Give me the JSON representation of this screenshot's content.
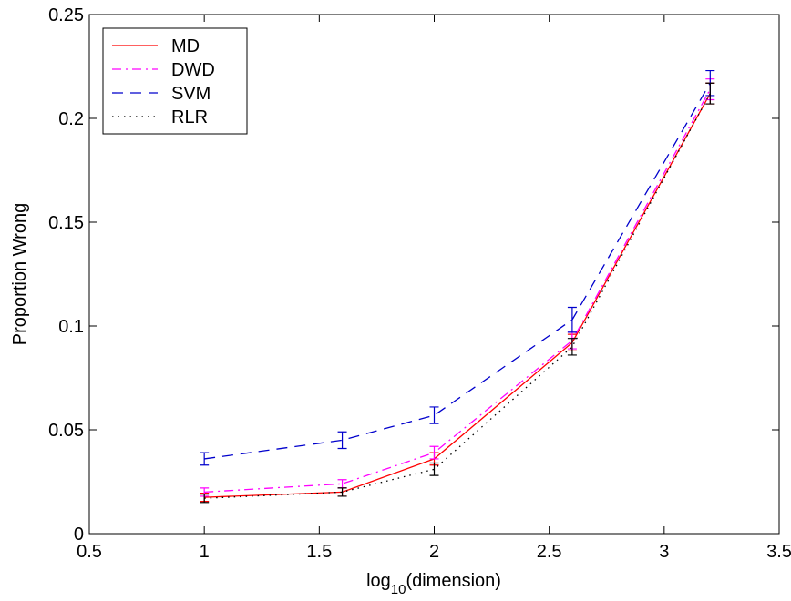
{
  "chart_data": {
    "type": "line",
    "xlabel": {
      "base": "log",
      "sub": "10",
      "rest": "(dimension)"
    },
    "ylabel": "Proportion Wrong",
    "x": [
      1,
      1.6,
      2,
      2.6,
      3.2
    ],
    "xlim": [
      0.5,
      3.5
    ],
    "xticks": [
      0.5,
      1,
      1.5,
      2,
      2.5,
      3,
      3.5
    ],
    "ylim": [
      0,
      0.25
    ],
    "yticks": [
      0,
      0.05,
      0.1,
      0.15,
      0.2,
      0.25
    ],
    "grid": false,
    "legend": "upper left",
    "series": [
      {
        "name": "MD",
        "color": "#ff0000",
        "linestyle": "solid",
        "values": [
          0.0175,
          0.02,
          0.036,
          0.092,
          0.212
        ],
        "errors": [
          0.002,
          0.002,
          0.003,
          0.004,
          0.005
        ]
      },
      {
        "name": "DWD",
        "color": "#ff00ff",
        "linestyle": "dashdot",
        "values": [
          0.02,
          0.024,
          0.039,
          0.093,
          0.214
        ],
        "errors": [
          0.002,
          0.002,
          0.003,
          0.004,
          0.005
        ]
      },
      {
        "name": "SVM",
        "color": "#0000cc",
        "linestyle": "dashed",
        "values": [
          0.036,
          0.045,
          0.057,
          0.103,
          0.217
        ],
        "errors": [
          0.003,
          0.004,
          0.004,
          0.006,
          0.006
        ]
      },
      {
        "name": "RLR",
        "color": "#000000",
        "linestyle": "dotted",
        "values": [
          0.017,
          0.02,
          0.031,
          0.09,
          0.212
        ],
        "errors": [
          0.002,
          0.002,
          0.003,
          0.004,
          0.005
        ]
      }
    ]
  }
}
